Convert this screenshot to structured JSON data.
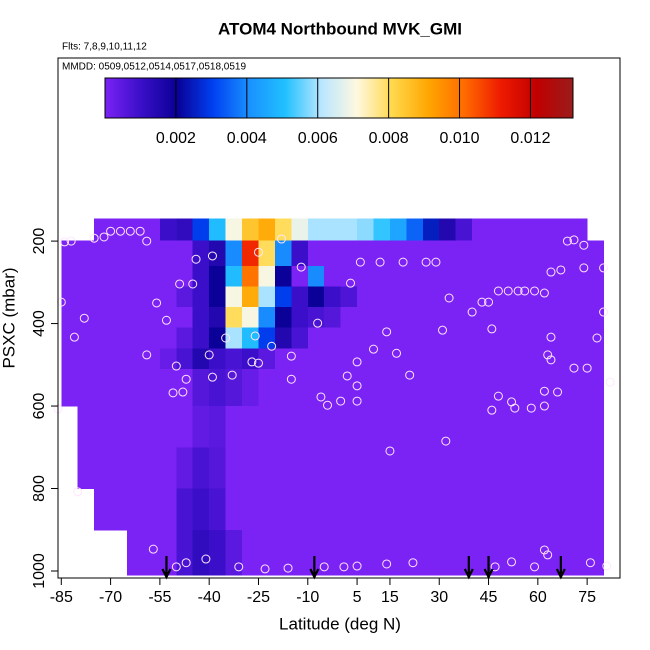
{
  "chart_data": {
    "type": "heatmap",
    "title": "ATOM4 Northbound MVK_GMI",
    "flights_label": "Flts: 7,8,9,10,11,12",
    "dates_label": "MMDD: 0509,0512,0514,0517,0518,0519",
    "xlabel": "Latitude (deg N)",
    "ylabel": "PSXC (mbar)",
    "xlim": [
      -86,
      85
    ],
    "ylim": [
      1017,
      -244
    ],
    "xticks": [
      -85,
      -70,
      -55,
      -40,
      -25,
      -10,
      5,
      15,
      30,
      45,
      60,
      75
    ],
    "yticks": [
      200,
      400,
      600,
      800,
      1000
    ],
    "x_edges": [
      -85,
      -80,
      -75,
      -70,
      -65,
      -60,
      -55,
      -50,
      -45,
      -40,
      -35,
      -30,
      -25,
      -20,
      -15,
      -10,
      -5,
      0,
      5,
      10,
      15,
      20,
      25,
      30,
      35,
      40,
      45,
      50,
      55,
      60,
      65,
      70,
      75,
      80,
      85
    ],
    "y_edges": [
      145,
      198,
      260,
      310,
      360,
      410,
      460,
      510,
      600,
      700,
      800,
      900,
      1010
    ],
    "z": [
      [
        null,
        null,
        0,
        0,
        0,
        0,
        0.001,
        0.0012,
        0.003,
        0.005,
        0.007,
        0.0085,
        0.009,
        0.008,
        0.0068,
        0.006,
        0.006,
        0.006,
        0.0058,
        0.0052,
        0.0045,
        0.0035,
        0.0025,
        0.0015,
        0.0008,
        0,
        0,
        0,
        0,
        0,
        0,
        0,
        null,
        null
      ],
      [
        0,
        0,
        0,
        0,
        0,
        0,
        0,
        0,
        0.001,
        0.0015,
        0.004,
        0.011,
        0.008,
        0.004,
        0.001,
        0,
        0,
        0,
        0,
        0,
        0,
        0,
        0,
        0,
        0,
        0,
        0,
        0,
        0,
        0,
        0,
        0,
        0,
        null
      ],
      [
        0,
        0,
        0,
        0,
        0,
        0,
        0,
        0,
        0.001,
        0.002,
        0.005,
        0.01,
        0.007,
        0.002,
        0,
        0.004,
        0,
        0,
        0,
        0,
        0,
        0,
        0,
        0,
        0,
        0,
        0,
        0,
        0,
        0,
        0,
        0,
        0,
        null
      ],
      [
        0,
        0,
        0,
        0,
        0,
        0,
        0,
        0.0005,
        0.001,
        0.002,
        0.007,
        0.009,
        0.006,
        0.003,
        0.001,
        0.002,
        0.001,
        0.0007,
        0,
        0,
        0,
        0,
        0,
        0,
        0,
        0,
        0,
        0,
        0,
        0,
        0,
        0,
        0,
        null
      ],
      [
        0,
        0,
        0,
        0,
        0,
        0,
        0,
        0,
        0.001,
        0.0015,
        0.008,
        0.007,
        0.004,
        0.002,
        0.001,
        0.0008,
        0.0006,
        0,
        0,
        0,
        0,
        0,
        0,
        0,
        0,
        0,
        0,
        0,
        0,
        0,
        0,
        0,
        0,
        null
      ],
      [
        0,
        0,
        0,
        0,
        0,
        0,
        0,
        0.0005,
        0.001,
        0.002,
        0.006,
        0.005,
        0.003,
        0.0015,
        0.0008,
        0,
        0,
        0,
        0,
        0,
        0,
        0,
        0,
        0,
        0,
        0,
        0,
        0,
        0,
        0,
        0,
        0,
        0,
        null
      ],
      [
        0,
        0,
        0,
        0,
        0,
        0,
        0.0003,
        0.0008,
        0.0015,
        0.001,
        0.0008,
        0.001,
        0.0005,
        0,
        0,
        0,
        0,
        0,
        0,
        0,
        0,
        0,
        0,
        0,
        0,
        0,
        0,
        0,
        0,
        0,
        0,
        0,
        0,
        null
      ],
      [
        0,
        0,
        0,
        0,
        0,
        0,
        0,
        0,
        0.0006,
        0.0008,
        0.0006,
        0.0003,
        0,
        0,
        0,
        0,
        0,
        0,
        0,
        0,
        0,
        0,
        0,
        0,
        0,
        0,
        0,
        0,
        0,
        0,
        0,
        0,
        0,
        null
      ],
      [
        null,
        0,
        0,
        0,
        0,
        0,
        0,
        0,
        0.0004,
        0.0005,
        0,
        0,
        0,
        0,
        0,
        0,
        0,
        0,
        0,
        0,
        0,
        0,
        0,
        0,
        0,
        0,
        0,
        0,
        0,
        0,
        0,
        0,
        0,
        null
      ],
      [
        null,
        0,
        0,
        0,
        0,
        0,
        0,
        0.0004,
        0.0008,
        0.0006,
        0,
        0,
        0,
        0,
        0,
        0,
        0,
        0,
        0,
        0,
        0,
        0,
        0,
        0,
        0,
        0,
        0,
        0,
        0,
        0,
        0,
        0,
        0,
        null
      ],
      [
        null,
        null,
        0,
        0,
        0,
        0,
        0,
        0.0008,
        0.001,
        0.0008,
        0,
        0,
        0,
        0,
        0,
        0,
        0,
        0,
        0,
        0,
        0,
        0,
        0,
        0,
        0,
        0,
        0,
        0,
        0,
        0,
        0,
        0,
        0,
        null
      ],
      [
        null,
        null,
        null,
        null,
        0,
        0,
        0,
        0.0008,
        0.0012,
        0.001,
        0.0005,
        0,
        0,
        0,
        0,
        0,
        0,
        0,
        0,
        0,
        0,
        0,
        0,
        0,
        0,
        0,
        0,
        0,
        0,
        0,
        0,
        0,
        0,
        null
      ]
    ],
    "colorbar": {
      "lim": [
        0,
        0.0132
      ],
      "ticks": [
        0.002,
        0.004,
        0.006,
        0.008,
        {
          "value": 0.01,
          "label": "0.010"
        },
        0.012
      ],
      "colors": [
        "#7b22f5",
        "#3a0fc8",
        "#0a0096",
        "#0040f0",
        "#1a90ff",
        "#20c0ff",
        "#b8e6ff",
        "#fff8e0",
        "#ffd84a",
        "#ffa500",
        "#ff6a00",
        "#ee1a00",
        "#c00000",
        "#9a1c1c"
      ]
    },
    "points": {
      "color": "#ffe6ff",
      "lat": [
        -84,
        -82,
        -75,
        -72,
        -70,
        -67,
        -64,
        -61,
        -59,
        -44,
        -39,
        -25,
        -18,
        -12,
        6,
        12,
        19,
        26,
        29,
        -49,
        -45,
        -56,
        -53,
        -78,
        -85,
        -81,
        -26,
        -35,
        -7,
        3,
        14,
        33,
        31,
        10,
        40,
        43,
        45,
        46,
        48,
        51,
        54,
        56,
        59,
        62,
        64,
        67,
        69,
        71,
        74,
        74,
        80,
        80,
        78,
        64,
        63,
        64,
        71,
        75,
        82,
        66,
        62,
        62,
        58,
        53,
        52,
        48,
        46,
        32,
        15,
        21,
        17,
        5,
        2,
        5,
        5,
        0,
        -4,
        -6,
        -15,
        -15,
        -21,
        -25,
        -27,
        -33,
        -39,
        -40,
        -59,
        -50,
        -47,
        -51,
        -48,
        -86,
        -80,
        -57,
        -50,
        -47,
        -41,
        -31,
        -23,
        -16,
        -5,
        1,
        5,
        14,
        22,
        47,
        52,
        59,
        62,
        63,
        76,
        81
      ],
      "p": [
        202,
        200,
        193,
        190,
        176,
        176,
        176,
        176,
        200,
        244,
        236,
        227,
        195,
        263,
        251,
        251,
        251,
        251,
        251,
        304,
        304,
        350,
        392,
        387,
        348,
        433,
        430,
        435,
        399,
        302,
        420,
        338,
        416,
        462,
        372,
        348,
        348,
        413,
        321,
        321,
        321,
        321,
        321,
        326,
        275,
        270,
        200,
        197,
        210,
        265,
        265,
        372,
        435,
        433,
        476,
        488,
        508,
        508,
        542,
        566,
        564,
        600,
        605,
        605,
        590,
        576,
        610,
        685,
        709,
        525,
        472,
        493,
        527,
        551,
        588,
        588,
        598,
        578,
        535,
        479,
        455,
        496,
        493,
        525,
        530,
        476,
        476,
        503,
        535,
        568,
        566,
        607,
        808,
        947,
        990,
        980,
        971,
        990,
        995,
        993,
        990,
        990,
        988,
        983,
        980,
        990,
        978,
        990,
        949,
        961,
        980,
        988
      ]
    },
    "arrows": [
      -53,
      -8,
      39,
      45,
      67
    ]
  }
}
